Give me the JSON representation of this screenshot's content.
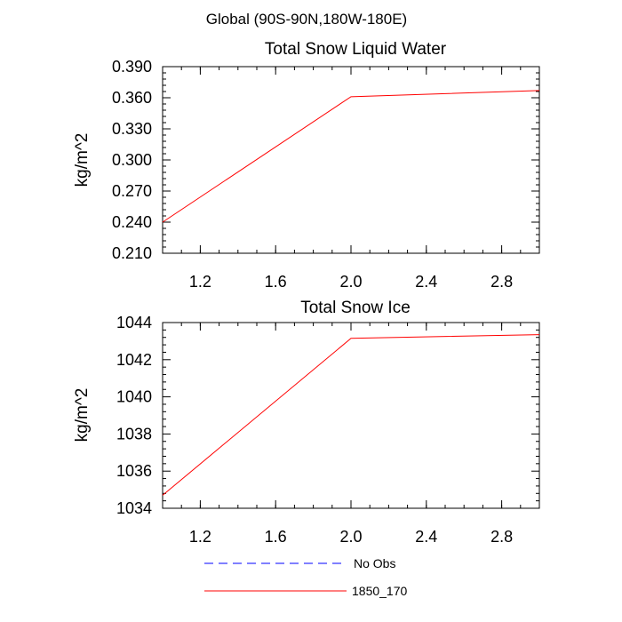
{
  "figure": {
    "suptitle": "Global (90S-90N,180W-180E)"
  },
  "chart_data": [
    {
      "type": "line",
      "title": "Total Snow Liquid Water",
      "xlabel": "",
      "ylabel": "kg/m^2",
      "xlim": [
        1.0,
        3.0
      ],
      "ylim": [
        0.21,
        0.39
      ],
      "xticks": [
        "1.2",
        "1.6",
        "2.0",
        "2.4",
        "2.8"
      ],
      "yticks": [
        "0.210",
        "0.240",
        "0.270",
        "0.300",
        "0.330",
        "0.360",
        "0.390"
      ],
      "series": [
        {
          "name": "1850_170",
          "color": "#ff0000",
          "x": [
            1.0,
            2.0,
            3.0
          ],
          "y": [
            0.24,
            0.361,
            0.367
          ]
        }
      ]
    },
    {
      "type": "line",
      "title": "Total Snow Ice",
      "xlabel": "",
      "ylabel": "kg/m^2",
      "xlim": [
        1.0,
        3.0
      ],
      "ylim": [
        1034,
        1044
      ],
      "xticks": [
        "1.2",
        "1.6",
        "2.0",
        "2.4",
        "2.8"
      ],
      "yticks": [
        "1034",
        "1036",
        "1038",
        "1040",
        "1042",
        "1044"
      ],
      "series": [
        {
          "name": "1850_170",
          "color": "#ff0000",
          "x": [
            1.0,
            2.0,
            3.0
          ],
          "y": [
            1034.7,
            1043.15,
            1043.35
          ]
        }
      ]
    }
  ],
  "legend": {
    "placement": "bottom",
    "items": [
      {
        "label": "No Obs",
        "color": "#0000ff",
        "style": "dashed"
      },
      {
        "label": "1850_170",
        "color": "#ff0000",
        "style": "solid"
      }
    ]
  }
}
